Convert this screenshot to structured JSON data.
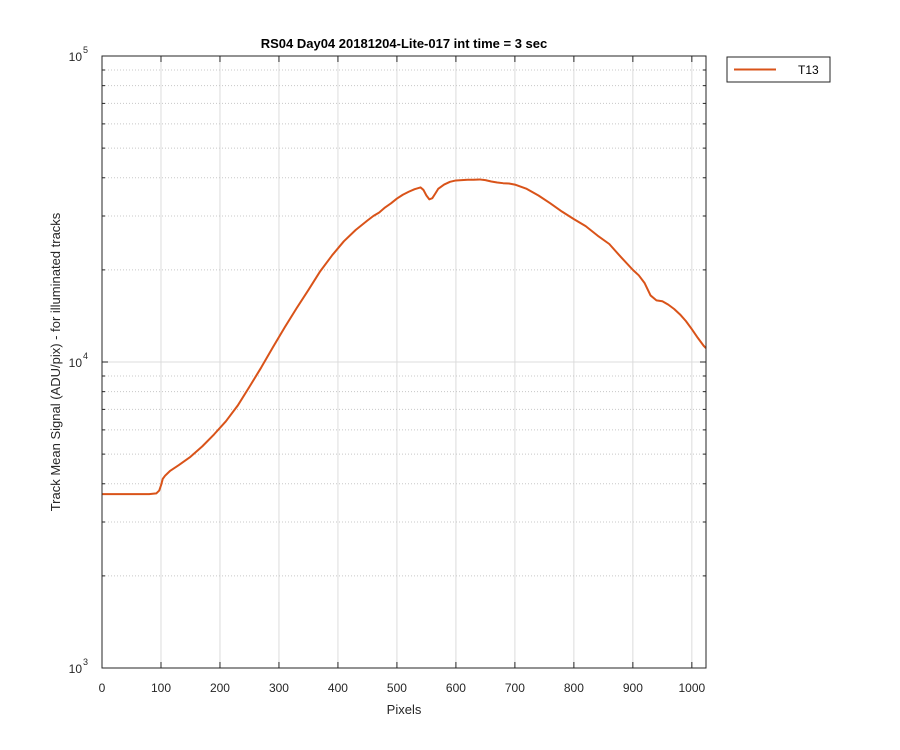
{
  "chart_data": {
    "type": "line",
    "title": "RS04 Day04 20181204-Lite-017 int time = 3 sec",
    "xlabel": "Pixels",
    "ylabel": "Track Mean Signal (ADU/pix) - for illuminated tracks",
    "xlim": [
      0,
      1024
    ],
    "ylim": [
      1000,
      100000
    ],
    "yscale": "log",
    "grid": true,
    "minor_grid": true,
    "legend_position": "outside-top-right",
    "xticks": [
      0,
      100,
      200,
      300,
      400,
      500,
      600,
      700,
      800,
      900,
      1000
    ],
    "xtick_labels": [
      "0",
      "100",
      "200",
      "300",
      "400",
      "500",
      "600",
      "700",
      "800",
      "900",
      "1000"
    ],
    "yticks": [
      {
        "value": 1000,
        "base": "10",
        "exp": "3"
      },
      {
        "value": 10000,
        "base": "10",
        "exp": "4"
      },
      {
        "value": 100000,
        "base": "10",
        "exp": "5"
      }
    ],
    "series": [
      {
        "name": "T13",
        "color": "#D95319",
        "x": [
          0,
          20,
          40,
          60,
          80,
          92,
          97,
          100,
          103,
          107,
          115,
          130,
          150,
          170,
          190,
          210,
          230,
          250,
          270,
          290,
          310,
          330,
          350,
          370,
          390,
          410,
          430,
          450,
          460,
          470,
          480,
          490,
          500,
          510,
          520,
          530,
          540,
          545,
          550,
          555,
          560,
          565,
          570,
          580,
          590,
          600,
          610,
          620,
          630,
          640,
          650,
          660,
          670,
          680,
          690,
          700,
          720,
          740,
          760,
          780,
          800,
          820,
          840,
          860,
          880,
          900,
          910,
          920,
          930,
          940,
          950,
          960,
          970,
          980,
          990,
          1000,
          1010,
          1020,
          1024
        ],
        "y": [
          3700,
          3700,
          3700,
          3700,
          3700,
          3720,
          3800,
          3950,
          4150,
          4250,
          4400,
          4600,
          4900,
          5300,
          5800,
          6400,
          7200,
          8300,
          9600,
          11200,
          13000,
          15000,
          17200,
          19800,
          22300,
          24800,
          27000,
          29000,
          30000,
          30800,
          32000,
          33000,
          34200,
          35200,
          36000,
          36700,
          37200,
          36500,
          35000,
          34000,
          34300,
          35500,
          36800,
          38000,
          38800,
          39200,
          39300,
          39400,
          39400,
          39500,
          39300,
          38900,
          38600,
          38400,
          38300,
          38000,
          36800,
          35000,
          33000,
          31000,
          29300,
          27800,
          25900,
          24300,
          22000,
          20000,
          19200,
          18100,
          16500,
          15900,
          15800,
          15400,
          14900,
          14300,
          13600,
          12800,
          12000,
          11300,
          11100
        ]
      }
    ]
  }
}
